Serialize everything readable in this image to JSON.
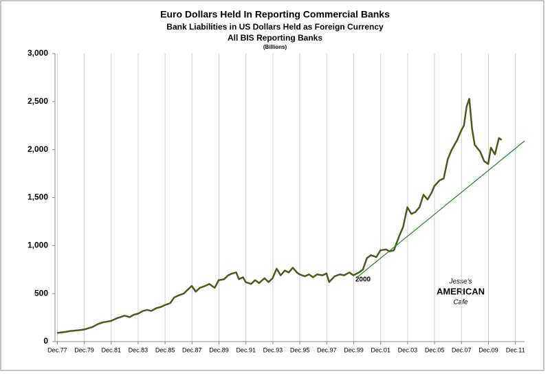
{
  "chart_data": {
    "type": "line",
    "title": "Euro Dollars Held In Reporting Commercial Banks",
    "subtitle": [
      "Bank Liabilities in US Dollars Held as Foreign Currency",
      "All BIS Reporting Banks",
      "(Billions)"
    ],
    "x": [
      1977.9,
      1978.5,
      1978.9,
      1979.5,
      1979.9,
      1980.5,
      1980.9,
      1981.3,
      1981.9,
      1982.3,
      1982.6,
      1982.9,
      1983.3,
      1983.6,
      1983.9,
      1984.3,
      1984.6,
      1984.9,
      1985.3,
      1985.6,
      1985.9,
      1986.3,
      1986.6,
      1986.9,
      1987.3,
      1987.6,
      1987.9,
      1988.2,
      1988.5,
      1988.9,
      1989.2,
      1989.6,
      1989.9,
      1990.3,
      1990.6,
      1990.9,
      1991.2,
      1991.4,
      1991.7,
      1991.9,
      1992.3,
      1992.6,
      1992.9,
      1993.3,
      1993.6,
      1993.9,
      1994.2,
      1994.5,
      1994.8,
      1995.1,
      1995.4,
      1995.7,
      1995.9,
      1996.3,
      1996.6,
      1996.9,
      1997.2,
      1997.6,
      1997.9,
      1998.1,
      1998.5,
      1998.9,
      1999.2,
      1999.6,
      1999.9,
      2000.3,
      2000.6,
      2000.9,
      2001.2,
      2001.6,
      2001.9,
      2002.3,
      2002.6,
      2002.9,
      2003.3,
      2003.6,
      2003.9,
      2004.2,
      2004.5,
      2004.8,
      2005.1,
      2005.4,
      2005.7,
      2005.9,
      2006.3,
      2006.6,
      2006.9,
      2007.2,
      2007.6,
      2007.9,
      2008.1,
      2008.3,
      2008.5,
      2008.7,
      2008.9,
      2009.3,
      2009.6,
      2009.9,
      2010.1,
      2010.4,
      2010.7,
      2010.9
    ],
    "series": [
      {
        "color": "#4a5a1e",
        "values": [
          90,
          100,
          110,
          118,
          125,
          150,
          180,
          200,
          215,
          240,
          255,
          270,
          255,
          280,
          290,
          320,
          330,
          320,
          350,
          360,
          380,
          400,
          460,
          480,
          500,
          540,
          580,
          520,
          560,
          580,
          600,
          560,
          640,
          650,
          690,
          710,
          720,
          650,
          670,
          620,
          600,
          640,
          610,
          660,
          620,
          660,
          760,
          690,
          740,
          720,
          770,
          720,
          700,
          680,
          700,
          670,
          700,
          690,
          710,
          620,
          680,
          700,
          690,
          720,
          690,
          720,
          750,
          870,
          900,
          880,
          950,
          960,
          940,
          950,
          1100,
          1200,
          1400,
          1330,
          1350,
          1400,
          1530,
          1480,
          1550,
          1620,
          1680,
          1700,
          1900,
          2000,
          2100,
          2200,
          2250,
          2450,
          2530,
          2220,
          2050,
          1980,
          1880,
          1850,
          2020,
          1950,
          2120,
          2100
        ]
      }
    ],
    "trend_line": {
      "label": "2000",
      "color": "#2e8b2e",
      "x": [
        2000.2,
        2013.1
      ],
      "values": [
        673,
        2147
      ]
    },
    "xlim": [
      1977.75,
      2012.6
    ],
    "xticks": [
      {
        "value": 1977.92,
        "label": "Dec.77"
      },
      {
        "value": 1979.92,
        "label": "Dec.79"
      },
      {
        "value": 1981.92,
        "label": "Dec.81"
      },
      {
        "value": 1983.92,
        "label": "Dec.83"
      },
      {
        "value": 1985.92,
        "label": "Dec.85"
      },
      {
        "value": 1987.92,
        "label": "Dec.87"
      },
      {
        "value": 1989.92,
        "label": "Dec.89"
      },
      {
        "value": 1991.92,
        "label": "Dec.91"
      },
      {
        "value": 1993.92,
        "label": "Dec.93"
      },
      {
        "value": 1995.92,
        "label": "Dec.95"
      },
      {
        "value": 1997.92,
        "label": "Dec.97"
      },
      {
        "value": 1999.92,
        "label": "Dec.99"
      },
      {
        "value": 2001.92,
        "label": "Dec.01"
      },
      {
        "value": 2003.92,
        "label": "Dec.03"
      },
      {
        "value": 2005.92,
        "label": "Dec.05"
      },
      {
        "value": 2007.92,
        "label": "Dec.07"
      },
      {
        "value": 2009.92,
        "label": "Dec.09"
      },
      {
        "value": 2011.92,
        "label": "Dec.11"
      }
    ],
    "ylim": [
      0,
      3000
    ],
    "yticks": [
      0,
      500,
      {
        "value": 1000,
        "label": "1,000"
      },
      {
        "value": 1500,
        "label": "1,500"
      },
      {
        "value": 2000,
        "label": "2,000"
      },
      {
        "value": 2500,
        "label": "2,500"
      },
      {
        "value": 3000,
        "label": "3,000"
      }
    ],
    "xgrid": true,
    "logo": [
      "Jesse's",
      "AMERICAN",
      "Cafe"
    ]
  }
}
